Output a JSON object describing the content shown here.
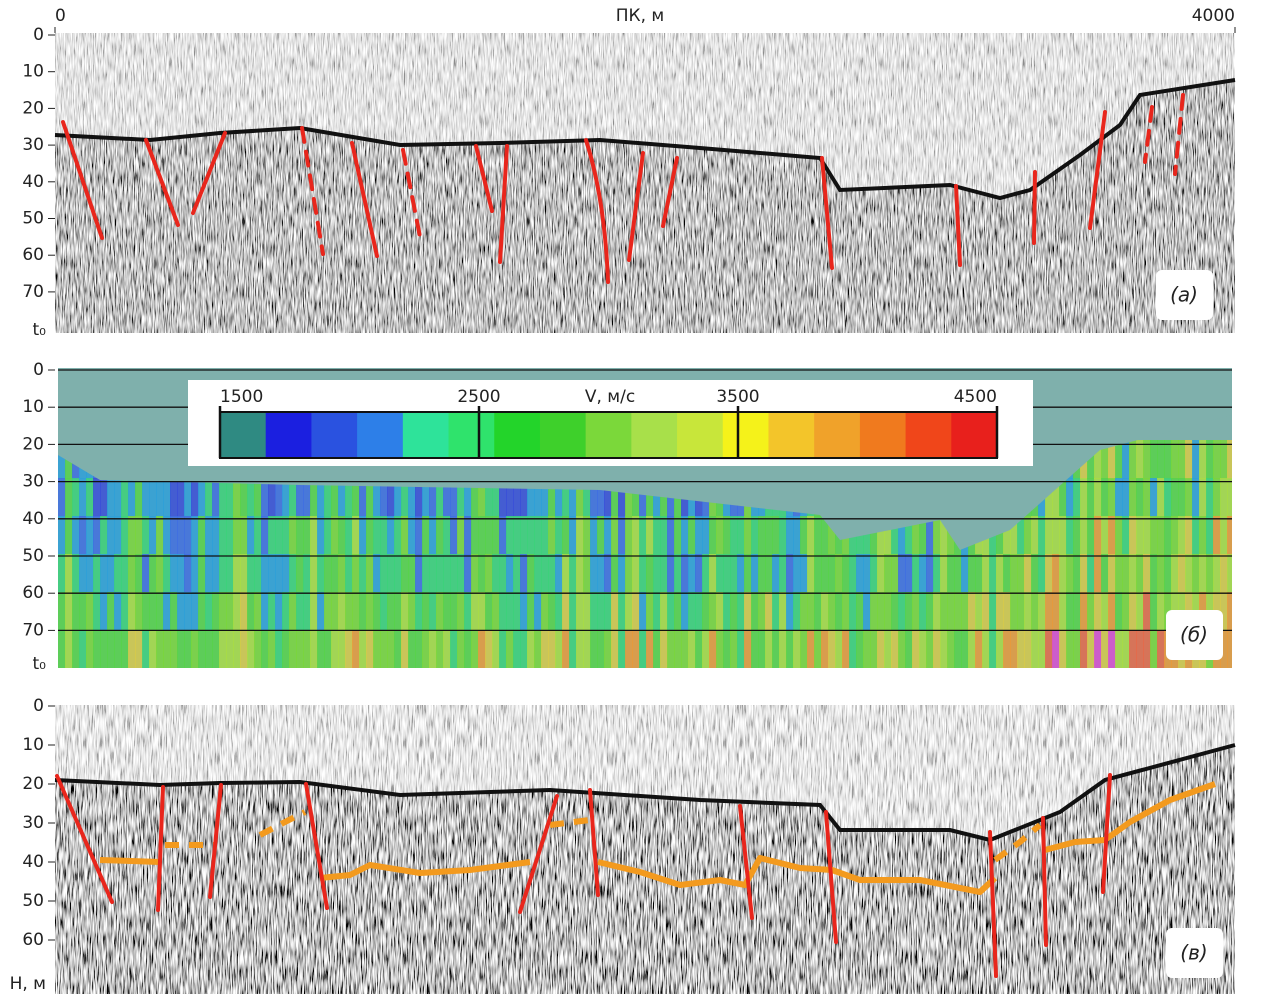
{
  "x_axis": {
    "label": "ПК, м",
    "ticks": [
      0,
      4000
    ]
  },
  "panels": [
    {
      "label": "(а)",
      "y_ticks": [
        0,
        10,
        20,
        30,
        40,
        50,
        60,
        70
      ],
      "y_end_label": "t₀"
    },
    {
      "label": "(б)",
      "y_ticks": [
        0,
        10,
        20,
        30,
        40,
        50,
        60,
        70
      ],
      "y_end_label": "t₀",
      "colorbar": {
        "title": "V, м/с",
        "ticks": [
          1500,
          2500,
          3500,
          4500
        ]
      }
    },
    {
      "label": "(в)",
      "y_ticks": [
        0,
        10,
        20,
        30,
        40,
        50,
        60
      ],
      "y_end_label": "H, м"
    }
  ]
}
